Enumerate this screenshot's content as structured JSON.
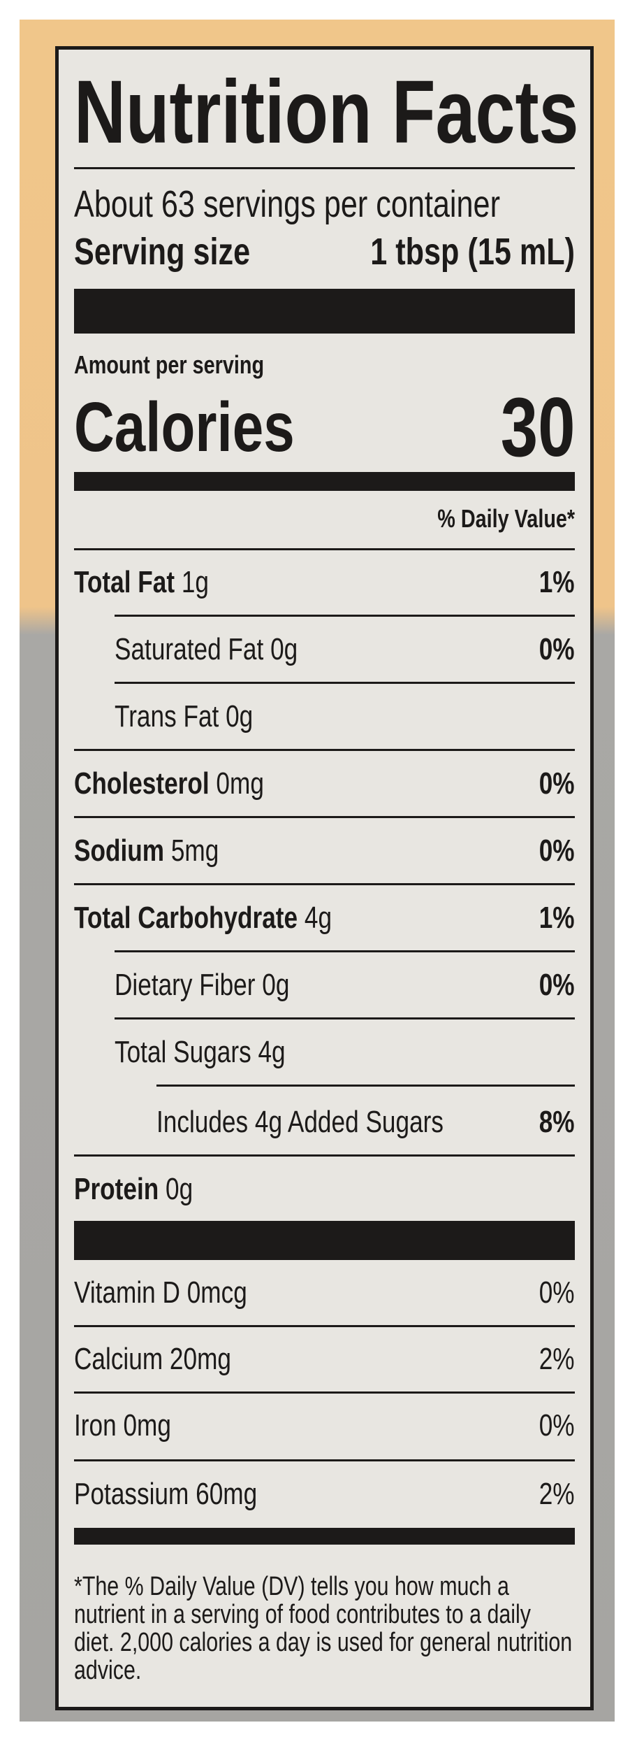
{
  "title": "Nutrition Facts",
  "servings_per_container": "About 63 servings per container",
  "serving_size": {
    "label": "Serving size",
    "value": "1 tbsp (15 mL)"
  },
  "amount_per_serving": "Amount per serving",
  "calories": {
    "label": "Calories",
    "value": "30"
  },
  "daily_value_header": "% Daily Value*",
  "nutrients": [
    {
      "name": "Total Fat",
      "amount": "1g",
      "dv": "1%"
    },
    {
      "name": "Saturated Fat",
      "amount": "0g",
      "dv": "0%"
    },
    {
      "name": "Trans Fat",
      "amount": "0g",
      "dv": ""
    },
    {
      "name": "Cholesterol",
      "amount": "0mg",
      "dv": "0%"
    },
    {
      "name": "Sodium",
      "amount": "5mg",
      "dv": "0%"
    },
    {
      "name": "Total Carbohydrate",
      "amount": "4g",
      "dv": "1%"
    },
    {
      "name": "Dietary Fiber",
      "amount": "0g",
      "dv": "0%"
    },
    {
      "name": "Total Sugars",
      "amount": "4g",
      "dv": ""
    },
    {
      "name": "Includes 4g Added Sugars",
      "amount": "",
      "dv": "8%"
    },
    {
      "name": "Protein",
      "amount": "0g",
      "dv": ""
    }
  ],
  "vitamins": [
    {
      "name": "Vitamin D",
      "amount": "0mcg",
      "dv": "0%"
    },
    {
      "name": "Calcium",
      "amount": "20mg",
      "dv": "2%"
    },
    {
      "name": "Iron",
      "amount": "0mg",
      "dv": "0%"
    },
    {
      "name": "Potassium",
      "amount": "60mg",
      "dv": "2%"
    }
  ],
  "footnote": "*The % Daily Value (DV) tells you how much a nutrient in a serving of food contributes to a daily diet. 2,000 calories a day is used for general nutrition advice.",
  "colors": {
    "ink": "#1c1a19",
    "label_bg": "#e8e6e1",
    "package_top": "#f0c68a",
    "package_bottom": "#a6a5a2"
  }
}
